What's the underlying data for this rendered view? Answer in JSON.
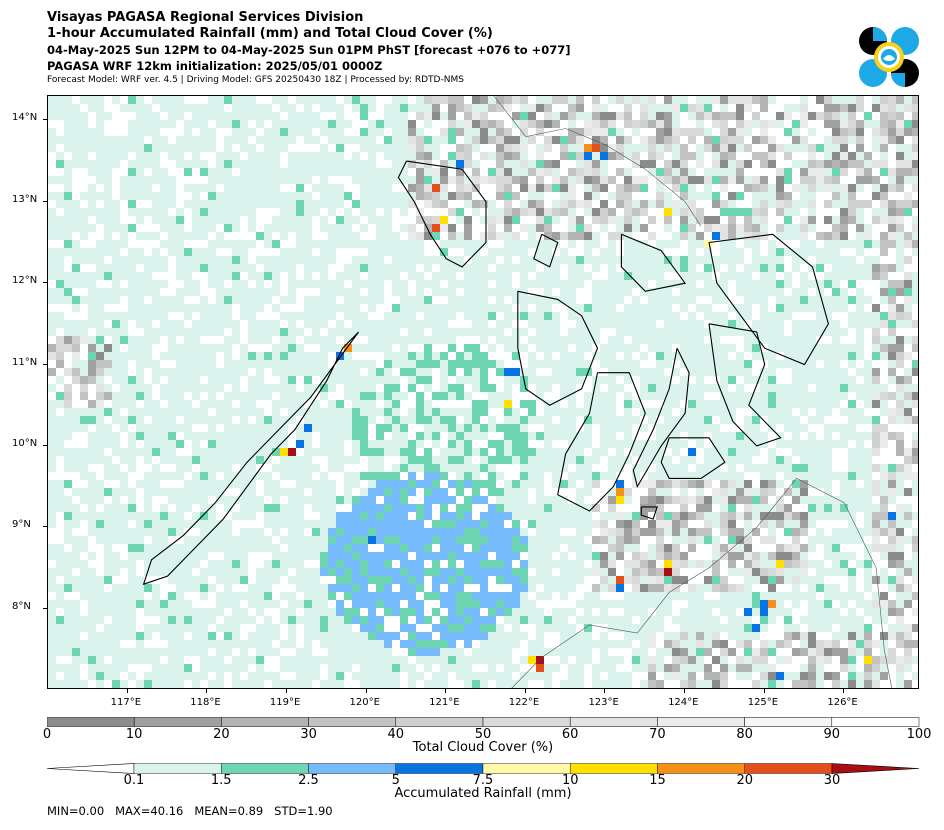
{
  "header": {
    "line1": "Visayas PAGASA Regional Services Division",
    "line2": "1-hour Accumulated Rainfall (mm) and Total Cloud Cover (%)",
    "line3": "04-May-2025 Sun 12PM to 04-May-2025 Sun 01PM PhST [forecast +076 to +077]",
    "line4": "PAGASA WRF 12km initialization: 2025/05/01 0000Z",
    "line5": "Forecast Model: WRF ver. 4.5 | Driving Model: GFS 20250430 18Z | Processed by: RDTD-NMS"
  },
  "map": {
    "lon_labels": [
      "117°E",
      "118°E",
      "119°E",
      "120°E",
      "121°E",
      "122°E",
      "123°E",
      "124°E",
      "125°E",
      "126°E"
    ],
    "lat_labels": [
      "14°N",
      "13°N",
      "12°N",
      "11°N",
      "10°N",
      "9°N",
      "8°N"
    ],
    "lon_range": [
      116.0,
      126.95
    ],
    "lat_range": [
      7.0,
      14.3
    ],
    "ocean_color": "#ffffff",
    "coastline_color": "#000000"
  },
  "cloud_colorbar": {
    "title": "Total Cloud Cover (%)",
    "ticks": [
      "0",
      "10",
      "20",
      "30",
      "40",
      "50",
      "60",
      "70",
      "80",
      "90",
      "100"
    ],
    "colors": [
      "#8c8c8c",
      "#a0a0a0",
      "#b4b4b4",
      "#c3c3c3",
      "#cfcfcf",
      "#dadada",
      "#e3e3e3",
      "#ececec",
      "#f5f5f5",
      "#ffffff"
    ]
  },
  "rain_colorbar": {
    "title": "Accumulated Rainfall (mm)",
    "ticks": [
      "0.1",
      "1.5",
      "2.5",
      "5",
      "7.5",
      "10",
      "15",
      "20",
      "30"
    ],
    "colors": [
      "#daf3ec",
      "#6ed6b2",
      "#75bbfc",
      "#0774e1",
      "#fff9a8",
      "#ffe000",
      "#f58f1a",
      "#e4501b",
      "#a50f15"
    ],
    "under_color": "#ffffff",
    "over_color": "#a50f15"
  },
  "stats": {
    "text": "MIN=0.00   MAX=40.16   MEAN=0.89   STD=1.90"
  },
  "icons": {
    "logo": "pagasa-logo-icon"
  }
}
